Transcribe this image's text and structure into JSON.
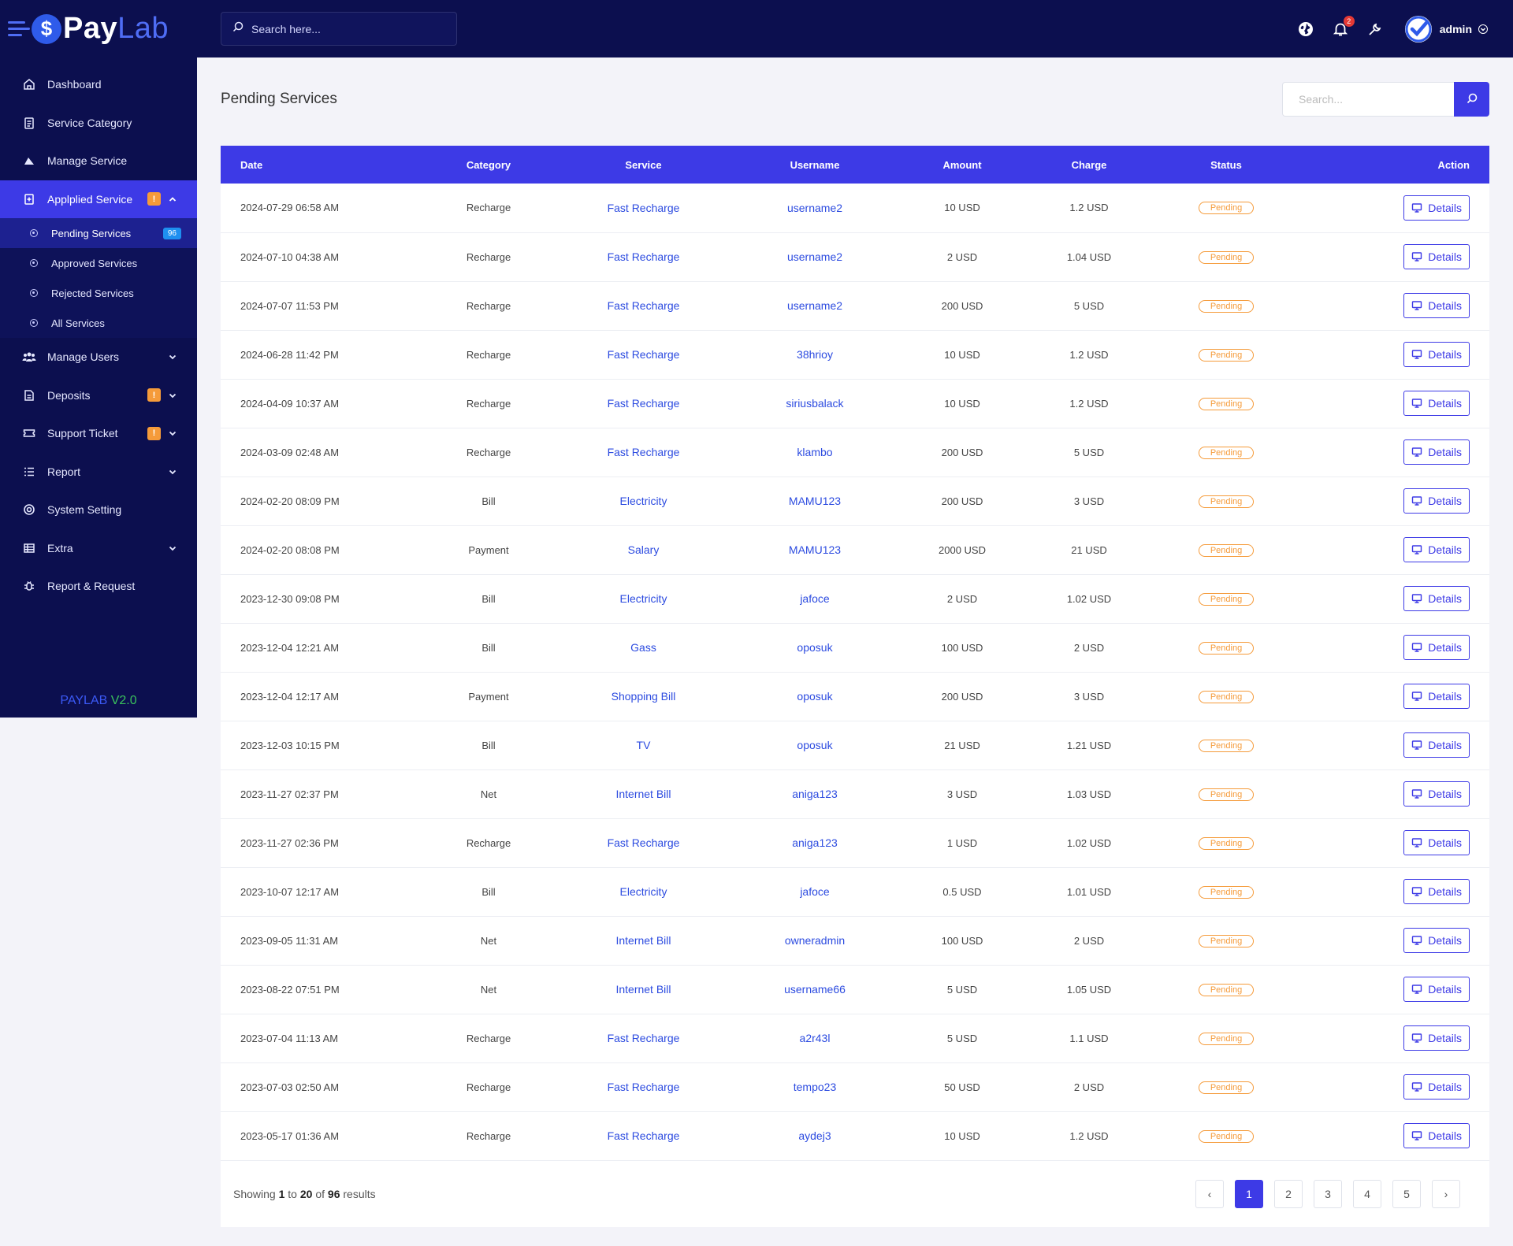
{
  "brand": {
    "pay": "Pay",
    "lab": "Lab"
  },
  "sidebar": {
    "items": [
      {
        "label": "Dashboard",
        "icon": "home-icon"
      },
      {
        "label": "Service Category",
        "icon": "clipboard-icon"
      },
      {
        "label": "Manage Service",
        "icon": "triangle-icon"
      },
      {
        "label": "Applied Service",
        "icon": "file-plus-icon",
        "badge": "!"
      },
      {
        "label": "Manage Users",
        "icon": "users-icon"
      },
      {
        "label": "Deposits",
        "icon": "document-icon",
        "badge": "!"
      },
      {
        "label": "Support Ticket",
        "icon": "ticket-icon",
        "badge": "!"
      },
      {
        "label": "Report",
        "icon": "list-icon"
      },
      {
        "label": "System Setting",
        "icon": "settings-icon"
      },
      {
        "label": "Extra",
        "icon": "table-icon"
      },
      {
        "label": "Report & Request",
        "icon": "bug-icon"
      }
    ],
    "applied_display_label": "Applplied Service",
    "subitems": [
      {
        "label": "Pending Services",
        "count": "96"
      },
      {
        "label": "Approved Services"
      },
      {
        "label": "Rejected Services"
      },
      {
        "label": "All Services"
      }
    ],
    "version_brand": "PAYLAB",
    "version": "V2.0"
  },
  "topbar": {
    "search_placeholder": "Search here...",
    "notification_count": "2",
    "admin_name": "admin"
  },
  "page": {
    "title": "Pending Services",
    "search_placeholder": "Search..."
  },
  "table": {
    "headers": {
      "date": "Date",
      "category": "Category",
      "service": "Service",
      "username": "Username",
      "amount": "Amount",
      "charge": "Charge",
      "status": "Status",
      "action": "Action"
    },
    "rows": [
      {
        "date": "2024-07-29 06:58 AM",
        "category": "Recharge",
        "service": "Fast Recharge",
        "username": "username2",
        "amount": "10 USD",
        "charge": "1.2 USD",
        "status": "Pending",
        "action": "Details"
      },
      {
        "date": "2024-07-10 04:38 AM",
        "category": "Recharge",
        "service": "Fast Recharge",
        "username": "username2",
        "amount": "2 USD",
        "charge": "1.04 USD",
        "status": "Pending",
        "action": "Details"
      },
      {
        "date": "2024-07-07 11:53 PM",
        "category": "Recharge",
        "service": "Fast Recharge",
        "username": "username2",
        "amount": "200 USD",
        "charge": "5 USD",
        "status": "Pending",
        "action": "Details"
      },
      {
        "date": "2024-06-28 11:42 PM",
        "category": "Recharge",
        "service": "Fast Recharge",
        "username": "38hrioy",
        "amount": "10 USD",
        "charge": "1.2 USD",
        "status": "Pending",
        "action": "Details"
      },
      {
        "date": "2024-04-09 10:37 AM",
        "category": "Recharge",
        "service": "Fast Recharge",
        "username": "siriusbalack",
        "amount": "10 USD",
        "charge": "1.2 USD",
        "status": "Pending",
        "action": "Details"
      },
      {
        "date": "2024-03-09 02:48 AM",
        "category": "Recharge",
        "service": "Fast Recharge",
        "username": "klambo",
        "amount": "200 USD",
        "charge": "5 USD",
        "status": "Pending",
        "action": "Details"
      },
      {
        "date": "2024-02-20 08:09 PM",
        "category": "Bill",
        "service": "Electricity",
        "username": "MAMU123",
        "amount": "200 USD",
        "charge": "3 USD",
        "status": "Pending",
        "action": "Details"
      },
      {
        "date": "2024-02-20 08:08 PM",
        "category": "Payment",
        "service": "Salary",
        "username": "MAMU123",
        "amount": "2000 USD",
        "charge": "21 USD",
        "status": "Pending",
        "action": "Details"
      },
      {
        "date": "2023-12-30 09:08 PM",
        "category": "Bill",
        "service": "Electricity",
        "username": "jafoce",
        "amount": "2 USD",
        "charge": "1.02 USD",
        "status": "Pending",
        "action": "Details"
      },
      {
        "date": "2023-12-04 12:21 AM",
        "category": "Bill",
        "service": "Gass",
        "username": "oposuk",
        "amount": "100 USD",
        "charge": "2 USD",
        "status": "Pending",
        "action": "Details"
      },
      {
        "date": "2023-12-04 12:17 AM",
        "category": "Payment",
        "service": "Shopping Bill",
        "username": "oposuk",
        "amount": "200 USD",
        "charge": "3 USD",
        "status": "Pending",
        "action": "Details"
      },
      {
        "date": "2023-12-03 10:15 PM",
        "category": "Bill",
        "service": "TV",
        "username": "oposuk",
        "amount": "21 USD",
        "charge": "1.21 USD",
        "status": "Pending",
        "action": "Details"
      },
      {
        "date": "2023-11-27 02:37 PM",
        "category": "Net",
        "service": "Internet Bill",
        "username": "aniga123",
        "amount": "3 USD",
        "charge": "1.03 USD",
        "status": "Pending",
        "action": "Details"
      },
      {
        "date": "2023-11-27 02:36 PM",
        "category": "Recharge",
        "service": "Fast Recharge",
        "username": "aniga123",
        "amount": "1 USD",
        "charge": "1.02 USD",
        "status": "Pending",
        "action": "Details"
      },
      {
        "date": "2023-10-07 12:17 AM",
        "category": "Bill",
        "service": "Electricity",
        "username": "jafoce",
        "amount": "0.5 USD",
        "charge": "1.01 USD",
        "status": "Pending",
        "action": "Details"
      },
      {
        "date": "2023-09-05 11:31 AM",
        "category": "Net",
        "service": "Internet Bill",
        "username": "owneradmin",
        "amount": "100 USD",
        "charge": "2 USD",
        "status": "Pending",
        "action": "Details"
      },
      {
        "date": "2023-08-22 07:51 PM",
        "category": "Net",
        "service": "Internet Bill",
        "username": "username66",
        "amount": "5 USD",
        "charge": "1.05 USD",
        "status": "Pending",
        "action": "Details"
      },
      {
        "date": "2023-07-04 11:13 AM",
        "category": "Recharge",
        "service": "Fast Recharge",
        "username": "a2r43l",
        "amount": "5 USD",
        "charge": "1.1 USD",
        "status": "Pending",
        "action": "Details"
      },
      {
        "date": "2023-07-03 02:50 AM",
        "category": "Recharge",
        "service": "Fast Recharge",
        "username": "tempo23",
        "amount": "50 USD",
        "charge": "2 USD",
        "status": "Pending",
        "action": "Details"
      },
      {
        "date": "2023-05-17 01:36 AM",
        "category": "Recharge",
        "service": "Fast Recharge",
        "username": "aydej3",
        "amount": "10 USD",
        "charge": "1.2 USD",
        "status": "Pending",
        "action": "Details"
      }
    ]
  },
  "footer": {
    "showing_prefix": "Showing",
    "from": "1",
    "to_word": "to",
    "to": "20",
    "of_word": "of",
    "total": "96",
    "suffix": "results",
    "pages": [
      "1",
      "2",
      "3",
      "4",
      "5"
    ],
    "prev": "‹",
    "next": "›",
    "current_page": "1"
  },
  "colors": {
    "sidebar_bg": "#0c0f4f",
    "accent": "#3d3ae6",
    "link": "#2c4be0",
    "pending": "#f59b3a",
    "warning_badge": "#f59b3a",
    "count_badge": "#1e8ff0"
  }
}
